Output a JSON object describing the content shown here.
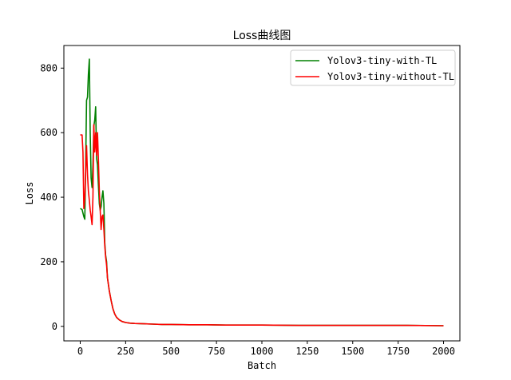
{
  "chart_data": {
    "type": "line",
    "title": "Loss曲线图",
    "xlabel": "Batch",
    "ylabel": "Loss",
    "xlim": [
      -90,
      2090
    ],
    "ylim": [
      -45,
      870
    ],
    "xticks": [
      0,
      250,
      500,
      750,
      1000,
      1250,
      1500,
      1750,
      2000
    ],
    "yticks": [
      0,
      200,
      400,
      600,
      800
    ],
    "grid": false,
    "legend": "top-right",
    "series": [
      {
        "name": "Yolov3-tiny-with-TL",
        "color": "#008000",
        "x": [
          0,
          10,
          20,
          25,
          30,
          35,
          40,
          45,
          50,
          55,
          60,
          65,
          70,
          75,
          80,
          85,
          90,
          95,
          100,
          105,
          110,
          115,
          120,
          125,
          130,
          135,
          140,
          145,
          150,
          160,
          170,
          180,
          190,
          200,
          215,
          230,
          250,
          275,
          300,
          350,
          400,
          450,
          500,
          600,
          700,
          800,
          900,
          1000,
          1200,
          1400,
          1600,
          1800,
          2000
        ],
        "y": [
          365,
          362,
          340,
          332,
          500,
          700,
          710,
          780,
          828,
          600,
          460,
          430,
          500,
          620,
          640,
          680,
          520,
          500,
          440,
          380,
          360,
          370,
          400,
          420,
          380,
          260,
          220,
          200,
          150,
          110,
          80,
          55,
          38,
          28,
          20,
          15,
          12,
          10,
          9,
          8,
          7,
          6,
          6,
          5,
          5,
          4,
          4,
          4,
          3,
          3,
          3,
          3,
          2
        ]
      },
      {
        "name": "Yolov3-tiny-without-TL",
        "color": "#ff0000",
        "x": [
          0,
          10,
          15,
          20,
          25,
          30,
          35,
          40,
          45,
          50,
          55,
          60,
          65,
          70,
          75,
          80,
          85,
          90,
          95,
          100,
          105,
          110,
          115,
          120,
          125,
          130,
          135,
          140,
          145,
          150,
          160,
          170,
          180,
          190,
          200,
          215,
          230,
          250,
          275,
          300,
          350,
          400,
          450,
          500,
          600,
          700,
          800,
          900,
          1000,
          1200,
          1400,
          1600,
          1800,
          2000
        ],
        "y": [
          593,
          593,
          540,
          365,
          400,
          480,
          560,
          470,
          420,
          390,
          360,
          340,
          315,
          400,
          625,
          540,
          600,
          530,
          600,
          520,
          420,
          360,
          300,
          340,
          345,
          300,
          250,
          215,
          190,
          150,
          110,
          80,
          55,
          38,
          28,
          20,
          15,
          12,
          10,
          9,
          8,
          7,
          6,
          6,
          5,
          5,
          4,
          4,
          4,
          3,
          3,
          3,
          3,
          2
        ]
      }
    ]
  }
}
